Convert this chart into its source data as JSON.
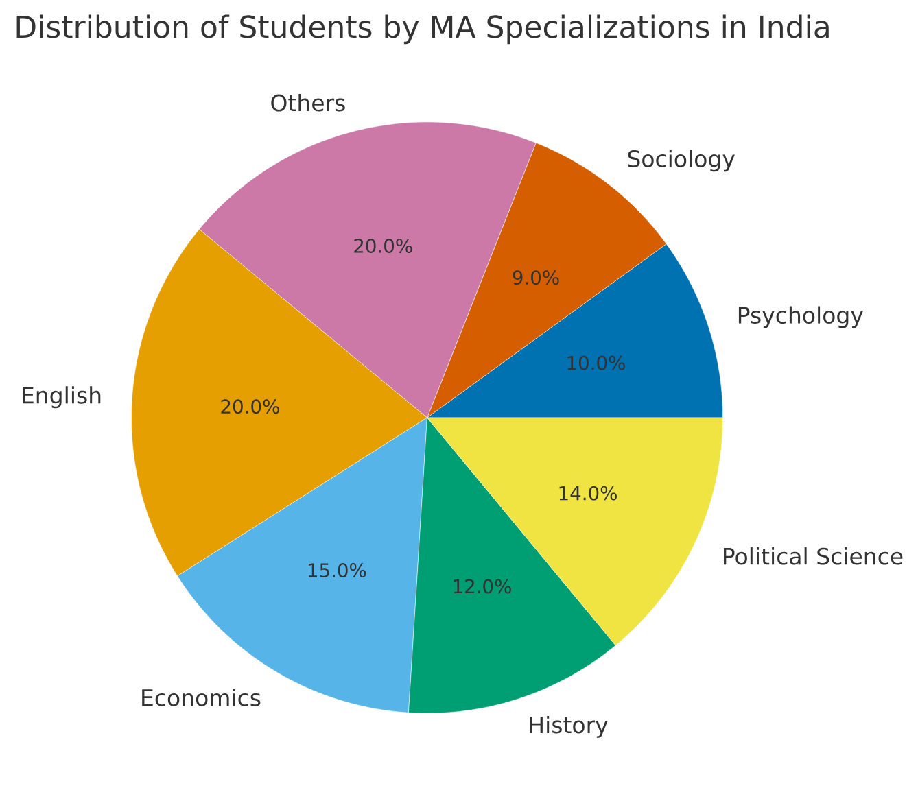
{
  "chart_data": {
    "type": "pie",
    "title": "Distribution of Students by MA Specializations in India",
    "categories": [
      "Psychology",
      "Sociology",
      "Others",
      "English",
      "Economics",
      "History",
      "Political Science"
    ],
    "values": [
      10,
      9,
      20,
      20,
      15,
      12,
      14
    ],
    "colors": [
      "#0072b2",
      "#d55e00",
      "#cc79a7",
      "#e69f00",
      "#56b4e9",
      "#009e73",
      "#f0e442"
    ],
    "value_labels": [
      "10.0%",
      "9.0%",
      "20.0%",
      "20.0%",
      "15.0%",
      "12.0%",
      "14.0%"
    ]
  }
}
